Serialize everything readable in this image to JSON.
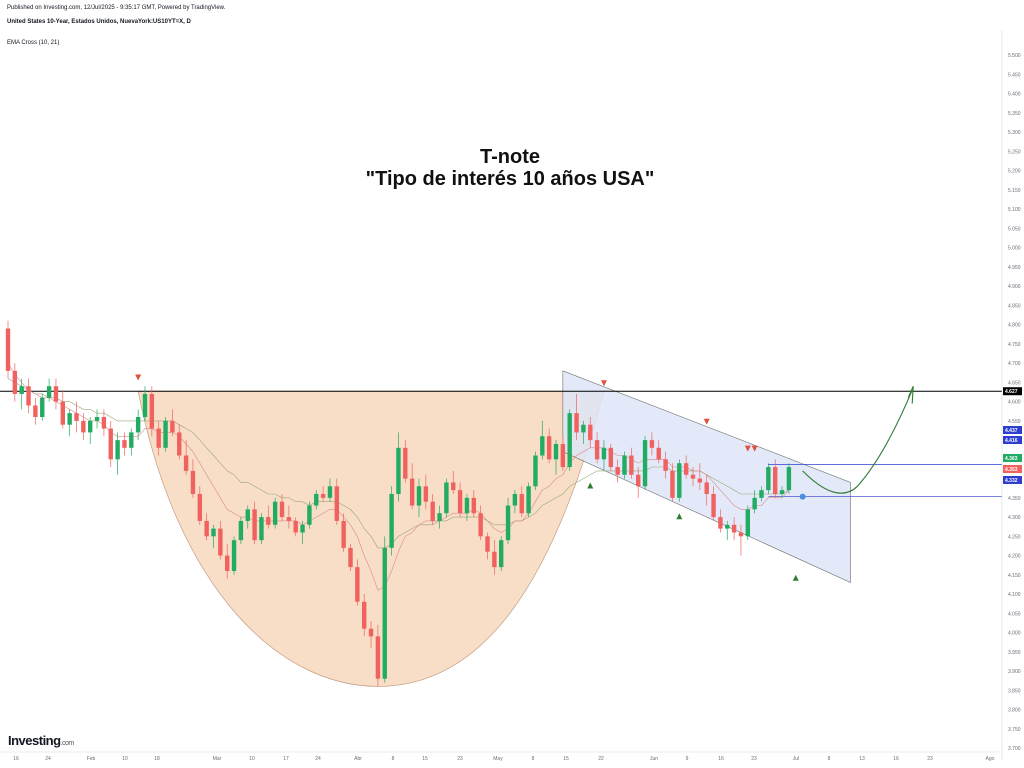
{
  "header": {
    "published": "Published on Investing.com, 12/Jul/2025 - 9:35:17 GMT, Powered by TradingView.",
    "symbol": "United States 10-Year, Estados Unidos, NuevaYork:US10YT=X, D",
    "indicator": "EMA Cross (10, 21)"
  },
  "title": {
    "line1": "T-note",
    "line2": "\"Tipo de interés 10 años USA\""
  },
  "logo": {
    "brand": "Investing",
    "suffix": ".com"
  },
  "colors": {
    "up": "#22ab62",
    "down": "#f0625f",
    "cup_fill": "#f7d9bd",
    "channel_fill": "#dfe6f7",
    "resistance": "#000000",
    "target_arrow": "#2e7d32",
    "marker_red": "#e0513e",
    "marker_green": "#2e7d32",
    "blue_line": "#2e3fcf"
  },
  "chart_data": {
    "type": "candlestick",
    "ylim": [
      3.7,
      5.55
    ],
    "y_ticks": [
      "5.500",
      "5.450",
      "5.400",
      "5.350",
      "5.300",
      "5.250",
      "5.200",
      "5.150",
      "5.100",
      "5.050",
      "5.000",
      "4.950",
      "4.900",
      "4.850",
      "4.800",
      "4.750",
      "4.700",
      "4.650",
      "4.600",
      "4.550",
      "4.500",
      "4.450",
      "4.400",
      "4.350",
      "4.300",
      "4.250",
      "4.200",
      "4.150",
      "4.100",
      "4.050",
      "4.000",
      "3.950",
      "3.900",
      "3.850",
      "3.800",
      "3.750",
      "3.700"
    ],
    "x_ticks": [
      "16",
      "24",
      "Feb",
      "10",
      "18",
      "Mar",
      "10",
      "17",
      "24",
      "Abr",
      "8",
      "15",
      "23",
      "May",
      "8",
      "15",
      "22",
      "Jun",
      "9",
      "16",
      "23",
      "Jul",
      "8",
      "13",
      "16",
      "23",
      "Ago"
    ],
    "price_tags": [
      {
        "label": "4.627",
        "value": 4.627,
        "color": "#000000"
      },
      {
        "label": "4.437",
        "value": 4.437,
        "color": "#2e3fcf"
      },
      {
        "label": "4.416",
        "value": 4.416,
        "color": "#2e3fcf"
      },
      {
        "label": "4.363",
        "value": 4.363,
        "color": "#22ab62"
      },
      {
        "label": "4.353",
        "value": 4.353,
        "color": "#f0625f"
      },
      {
        "label": "4.332",
        "value": 4.332,
        "color": "#2e3fcf"
      }
    ],
    "resistance": 4.627,
    "blue_lines": [
      4.437,
      4.353
    ],
    "candles": [
      [
        4.79,
        4.81,
        4.66,
        4.68
      ],
      [
        4.68,
        4.7,
        4.6,
        4.62
      ],
      [
        4.62,
        4.66,
        4.58,
        4.64
      ],
      [
        4.64,
        4.66,
        4.57,
        4.59
      ],
      [
        4.59,
        4.61,
        4.54,
        4.56
      ],
      [
        4.56,
        4.62,
        4.55,
        4.61
      ],
      [
        4.61,
        4.66,
        4.6,
        4.64
      ],
      [
        4.64,
        4.66,
        4.58,
        4.6
      ],
      [
        4.6,
        4.63,
        4.53,
        4.54
      ],
      [
        4.54,
        4.58,
        4.51,
        4.57
      ],
      [
        4.57,
        4.6,
        4.52,
        4.55
      ],
      [
        4.55,
        4.57,
        4.5,
        4.52
      ],
      [
        4.52,
        4.56,
        4.49,
        4.55
      ],
      [
        4.55,
        4.58,
        4.53,
        4.56
      ],
      [
        4.56,
        4.58,
        4.51,
        4.53
      ],
      [
        4.53,
        4.55,
        4.43,
        4.45
      ],
      [
        4.45,
        4.52,
        4.41,
        4.5
      ],
      [
        4.5,
        4.52,
        4.46,
        4.48
      ],
      [
        4.48,
        4.53,
        4.46,
        4.52
      ],
      [
        4.52,
        4.58,
        4.5,
        4.56
      ],
      [
        4.56,
        4.64,
        4.55,
        4.62
      ],
      [
        4.62,
        4.64,
        4.51,
        4.53
      ],
      [
        4.53,
        4.55,
        4.46,
        4.48
      ],
      [
        4.48,
        4.56,
        4.47,
        4.55
      ],
      [
        4.55,
        4.58,
        4.51,
        4.52
      ],
      [
        4.52,
        4.54,
        4.45,
        4.46
      ],
      [
        4.46,
        4.5,
        4.41,
        4.42
      ],
      [
        4.42,
        4.45,
        4.35,
        4.36
      ],
      [
        4.36,
        4.38,
        4.28,
        4.29
      ],
      [
        4.29,
        4.31,
        4.24,
        4.25
      ],
      [
        4.25,
        4.28,
        4.22,
        4.27
      ],
      [
        4.27,
        4.29,
        4.19,
        4.2
      ],
      [
        4.2,
        4.23,
        4.14,
        4.16
      ],
      [
        4.16,
        4.25,
        4.15,
        4.24
      ],
      [
        4.24,
        4.3,
        4.23,
        4.29
      ],
      [
        4.29,
        4.33,
        4.27,
        4.32
      ],
      [
        4.32,
        4.34,
        4.23,
        4.24
      ],
      [
        4.24,
        4.31,
        4.23,
        4.3
      ],
      [
        4.3,
        4.33,
        4.27,
        4.28
      ],
      [
        4.28,
        4.35,
        4.27,
        4.34
      ],
      [
        4.34,
        4.36,
        4.29,
        4.3
      ],
      [
        4.3,
        4.33,
        4.27,
        4.29
      ],
      [
        4.29,
        4.3,
        4.25,
        4.26
      ],
      [
        4.26,
        4.29,
        4.23,
        4.28
      ],
      [
        4.28,
        4.34,
        4.27,
        4.33
      ],
      [
        4.33,
        4.37,
        4.32,
        4.36
      ],
      [
        4.36,
        4.38,
        4.34,
        4.35
      ],
      [
        4.35,
        4.4,
        4.34,
        4.38
      ],
      [
        4.38,
        4.4,
        4.28,
        4.29
      ],
      [
        4.29,
        4.31,
        4.21,
        4.22
      ],
      [
        4.22,
        4.23,
        4.16,
        4.17
      ],
      [
        4.17,
        4.19,
        4.07,
        4.08
      ],
      [
        4.08,
        4.1,
        3.99,
        4.01
      ],
      [
        4.01,
        4.03,
        3.96,
        3.99
      ],
      [
        3.99,
        4.02,
        3.86,
        3.88
      ],
      [
        3.88,
        4.25,
        3.87,
        4.22
      ],
      [
        4.22,
        4.38,
        4.2,
        4.36
      ],
      [
        4.36,
        4.52,
        4.34,
        4.48
      ],
      [
        4.48,
        4.5,
        4.39,
        4.4
      ],
      [
        4.4,
        4.44,
        4.32,
        4.33
      ],
      [
        4.33,
        4.4,
        4.3,
        4.38
      ],
      [
        4.38,
        4.41,
        4.32,
        4.34
      ],
      [
        4.34,
        4.36,
        4.28,
        4.29
      ],
      [
        4.29,
        4.33,
        4.27,
        4.31
      ],
      [
        4.31,
        4.4,
        4.3,
        4.39
      ],
      [
        4.39,
        4.42,
        4.36,
        4.37
      ],
      [
        4.37,
        4.39,
        4.3,
        4.31
      ],
      [
        4.31,
        4.36,
        4.29,
        4.35
      ],
      [
        4.35,
        4.37,
        4.3,
        4.31
      ],
      [
        4.31,
        4.33,
        4.24,
        4.25
      ],
      [
        4.25,
        4.26,
        4.19,
        4.21
      ],
      [
        4.21,
        4.24,
        4.15,
        4.17
      ],
      [
        4.17,
        4.25,
        4.16,
        4.24
      ],
      [
        4.24,
        4.35,
        4.23,
        4.33
      ],
      [
        4.33,
        4.37,
        4.31,
        4.36
      ],
      [
        4.36,
        4.38,
        4.3,
        4.31
      ],
      [
        4.31,
        4.39,
        4.3,
        4.38
      ],
      [
        4.38,
        4.47,
        4.37,
        4.46
      ],
      [
        4.46,
        4.55,
        4.45,
        4.51
      ],
      [
        4.51,
        4.53,
        4.44,
        4.45
      ],
      [
        4.45,
        4.5,
        4.41,
        4.49
      ],
      [
        4.49,
        4.51,
        4.42,
        4.43
      ],
      [
        4.43,
        4.58,
        4.42,
        4.57
      ],
      [
        4.57,
        4.62,
        4.5,
        4.52
      ],
      [
        4.52,
        4.55,
        4.49,
        4.54
      ],
      [
        4.54,
        4.56,
        4.48,
        4.5
      ],
      [
        4.5,
        4.52,
        4.44,
        4.45
      ],
      [
        4.45,
        4.5,
        4.42,
        4.48
      ],
      [
        4.48,
        4.49,
        4.42,
        4.43
      ],
      [
        4.43,
        4.45,
        4.39,
        4.41
      ],
      [
        4.41,
        4.47,
        4.4,
        4.46
      ],
      [
        4.46,
        4.48,
        4.4,
        4.41
      ],
      [
        4.41,
        4.43,
        4.35,
        4.38
      ],
      [
        4.38,
        4.51,
        4.37,
        4.5
      ],
      [
        4.5,
        4.52,
        4.46,
        4.48
      ],
      [
        4.48,
        4.5,
        4.44,
        4.45
      ],
      [
        4.45,
        4.47,
        4.4,
        4.42
      ],
      [
        4.42,
        4.44,
        4.34,
        4.35
      ],
      [
        4.35,
        4.45,
        4.34,
        4.44
      ],
      [
        4.44,
        4.46,
        4.4,
        4.41
      ],
      [
        4.41,
        4.43,
        4.38,
        4.4
      ],
      [
        4.4,
        4.44,
        4.37,
        4.39
      ],
      [
        4.39,
        4.41,
        4.33,
        4.36
      ],
      [
        4.36,
        4.38,
        4.29,
        4.3
      ],
      [
        4.3,
        4.32,
        4.26,
        4.27
      ],
      [
        4.27,
        4.29,
        4.24,
        4.28
      ],
      [
        4.28,
        4.3,
        4.24,
        4.26
      ],
      [
        4.26,
        4.28,
        4.2,
        4.25
      ],
      [
        4.25,
        4.33,
        4.24,
        4.32
      ],
      [
        4.32,
        4.37,
        4.31,
        4.35
      ],
      [
        4.35,
        4.38,
        4.34,
        4.37
      ],
      [
        4.37,
        4.44,
        4.36,
        4.43
      ],
      [
        4.43,
        4.45,
        4.35,
        4.36
      ],
      [
        4.36,
        4.38,
        4.35,
        4.37
      ],
      [
        4.37,
        4.44,
        4.36,
        4.43
      ]
    ],
    "ema_fast": [
      4.7,
      4.67,
      4.65,
      4.63,
      4.62,
      4.61,
      4.61,
      4.6,
      4.59,
      4.58,
      4.57,
      4.56,
      4.55,
      4.55,
      4.54,
      4.52,
      4.51,
      4.51,
      4.51,
      4.51,
      4.53,
      4.53,
      4.52,
      4.52,
      4.52,
      4.51,
      4.49,
      4.47,
      4.44,
      4.41,
      4.38,
      4.35,
      4.32,
      4.31,
      4.3,
      4.3,
      4.29,
      4.29,
      4.29,
      4.29,
      4.29,
      4.29,
      4.29,
      4.28,
      4.29,
      4.3,
      4.31,
      4.32,
      4.32,
      4.3,
      4.28,
      4.25,
      4.2,
      4.16,
      4.11,
      4.12,
      4.16,
      4.21,
      4.25,
      4.26,
      4.28,
      4.29,
      4.29,
      4.29,
      4.3,
      4.31,
      4.31,
      4.31,
      4.32,
      4.31,
      4.29,
      4.27,
      4.26,
      4.27,
      4.29,
      4.29,
      4.31,
      4.34,
      4.37,
      4.38,
      4.4,
      4.41,
      4.44,
      4.46,
      4.47,
      4.48,
      4.48,
      4.48,
      4.47,
      4.46,
      4.46,
      4.45,
      4.44,
      4.45,
      4.45,
      4.45,
      4.45,
      4.43,
      4.43,
      4.43,
      4.42,
      4.42,
      4.41,
      4.39,
      4.37,
      4.35,
      4.33,
      4.32,
      4.32,
      4.33,
      4.33,
      4.35,
      4.35,
      4.35,
      4.37
    ],
    "ema_slow": [
      4.66,
      4.65,
      4.64,
      4.63,
      4.62,
      4.62,
      4.61,
      4.61,
      4.6,
      4.6,
      4.59,
      4.58,
      4.58,
      4.57,
      4.57,
      4.56,
      4.55,
      4.55,
      4.55,
      4.55,
      4.55,
      4.55,
      4.55,
      4.55,
      4.55,
      4.54,
      4.53,
      4.52,
      4.5,
      4.48,
      4.46,
      4.44,
      4.42,
      4.41,
      4.39,
      4.39,
      4.38,
      4.37,
      4.36,
      4.36,
      4.35,
      4.35,
      4.34,
      4.34,
      4.33,
      4.34,
      4.34,
      4.34,
      4.34,
      4.33,
      4.32,
      4.3,
      4.27,
      4.25,
      4.22,
      4.22,
      4.23,
      4.25,
      4.26,
      4.27,
      4.28,
      4.28,
      4.28,
      4.29,
      4.29,
      4.3,
      4.3,
      4.3,
      4.3,
      4.3,
      4.29,
      4.28,
      4.28,
      4.28,
      4.29,
      4.29,
      4.3,
      4.31,
      4.33,
      4.34,
      4.35,
      4.36,
      4.38,
      4.39,
      4.4,
      4.41,
      4.42,
      4.42,
      4.42,
      4.42,
      4.42,
      4.42,
      4.42,
      4.42,
      4.43,
      4.43,
      4.43,
      4.42,
      4.42,
      4.42,
      4.42,
      4.42,
      4.41,
      4.4,
      4.39,
      4.38,
      4.37,
      4.36,
      4.36,
      4.36,
      4.36,
      4.36,
      4.36,
      4.36,
      4.37
    ]
  }
}
